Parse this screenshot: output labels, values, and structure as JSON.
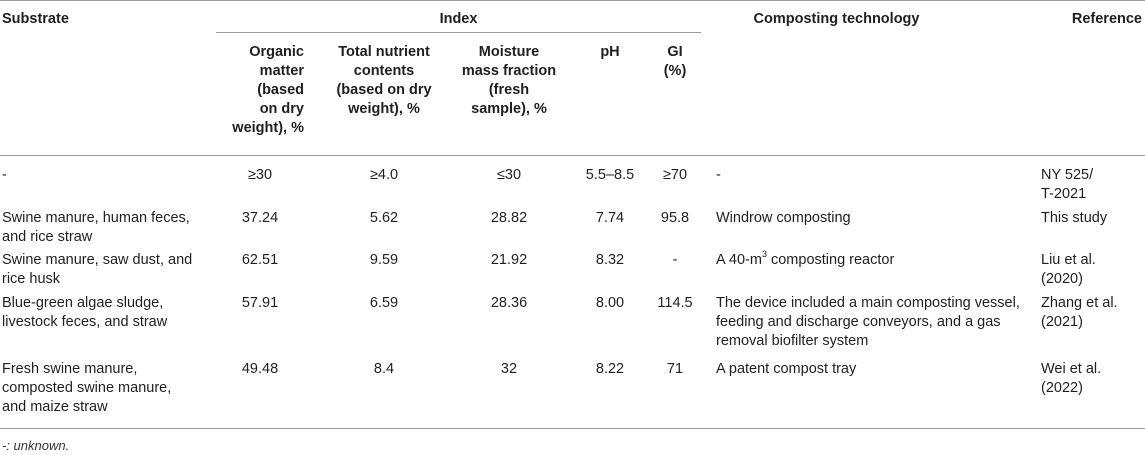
{
  "table": {
    "headers": {
      "substrate": "Substrate",
      "index": "Index",
      "technology": "Composting technology",
      "reference": "Reference",
      "om": [
        "Organic",
        "matter",
        "(based",
        "on dry",
        "weight), %"
      ],
      "tn": [
        "Total nutrient",
        "contents",
        "(based on dry",
        "weight), %"
      ],
      "mm": [
        "Moisture",
        "mass fraction",
        "(fresh",
        "sample), %"
      ],
      "ph": "pH",
      "gi": [
        "GI",
        "(%)"
      ]
    },
    "rows": [
      {
        "substrate": [
          "-"
        ],
        "om": "≥30",
        "tn": "≥4.0",
        "mm": "≤30",
        "ph": "5.5–8.5",
        "gi": "≥70",
        "technology": [
          "-"
        ],
        "reference": [
          "NY 525/",
          "T-2021"
        ]
      },
      {
        "substrate": [
          "Swine manure, human feces,",
          "and rice straw"
        ],
        "om": "37.24",
        "tn": "5.62",
        "mm": "28.82",
        "ph": "7.74",
        "gi": "95.8",
        "technology": [
          "Windrow composting"
        ],
        "reference": [
          "This study"
        ]
      },
      {
        "substrate": [
          "Swine manure, saw dust, and",
          "rice husk"
        ],
        "om": "62.51",
        "tn": "9.59",
        "mm": "21.92",
        "ph": "8.32",
        "gi": "-",
        "technology_pre": "A 40-m",
        "technology_sup": "3",
        "technology_post": " composting reactor",
        "reference": [
          "Liu et al.",
          "(2020)"
        ]
      },
      {
        "substrate": [
          "Blue-green algae sludge,",
          "livestock feces, and straw"
        ],
        "om": "57.91",
        "tn": "6.59",
        "mm": "28.36",
        "ph": "8.00",
        "gi": "114.5",
        "technology": [
          "The device included a main composting vessel,",
          "feeding and discharge conveyors, and a gas",
          "removal biofilter system"
        ],
        "reference": [
          "Zhang et al.",
          "(2021)"
        ]
      },
      {
        "substrate": [
          "Fresh swine manure,",
          "composted swine manure,",
          "and maize straw"
        ],
        "om": "49.48",
        "tn": "8.4",
        "mm": "32",
        "ph": "8.22",
        "gi": "71",
        "technology": [
          "A patent compost tray"
        ],
        "reference": [
          "Wei et al.",
          "(2022)"
        ]
      }
    ],
    "footnote": "-: unknown."
  }
}
